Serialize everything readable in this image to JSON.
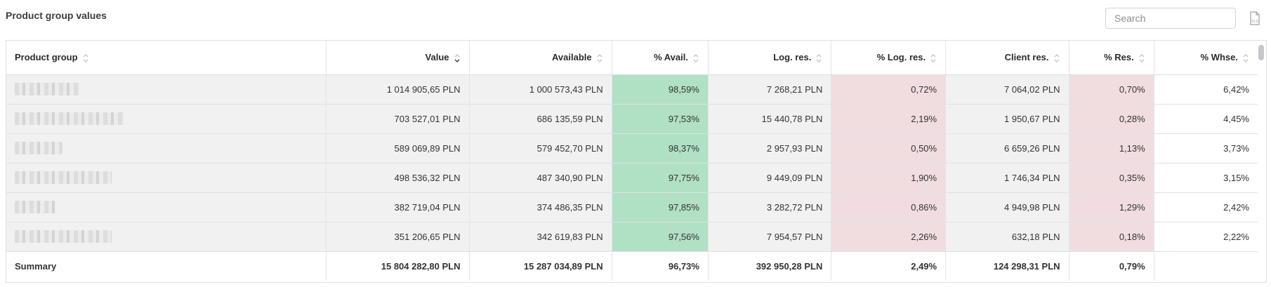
{
  "header": {
    "title": "Product group values"
  },
  "search": {
    "placeholder": "Search",
    "value": ""
  },
  "export": {
    "icon": "xls-file-icon",
    "label": "XLS"
  },
  "table": {
    "columns": [
      {
        "key": "group",
        "label": "Product group",
        "align": "left",
        "sort": "none"
      },
      {
        "key": "value",
        "label": "Value",
        "align": "right",
        "sort": "desc"
      },
      {
        "key": "available",
        "label": "Available",
        "align": "right",
        "sort": "none"
      },
      {
        "key": "pct_avail",
        "label": "% Avail.",
        "align": "right",
        "sort": "none"
      },
      {
        "key": "log_res",
        "label": "Log. res.",
        "align": "right",
        "sort": "none"
      },
      {
        "key": "pct_log_res",
        "label": "% Log. res.",
        "align": "right",
        "sort": "none"
      },
      {
        "key": "client_res",
        "label": "Client res.",
        "align": "right",
        "sort": "none"
      },
      {
        "key": "pct_res",
        "label": "% Res.",
        "align": "right",
        "sort": "none"
      },
      {
        "key": "pct_whse",
        "label": "% Whse.",
        "align": "right",
        "sort": "none"
      }
    ],
    "rows": [
      [
        "",
        "1 014 905,65 PLN",
        "1 000 573,43 PLN",
        "98,59%",
        "7 268,21 PLN",
        "0,72%",
        "7 064,02 PLN",
        "0,70%",
        "6,42%"
      ],
      [
        "",
        "703 527,01 PLN",
        "686 135,59 PLN",
        "97,53%",
        "15 440,78 PLN",
        "2,19%",
        "1 950,67 PLN",
        "0,28%",
        "4,45%"
      ],
      [
        "",
        "589 069,89 PLN",
        "579 452,70 PLN",
        "98,37%",
        "2 957,93 PLN",
        "0,50%",
        "6 659,26 PLN",
        "1,13%",
        "3,73%"
      ],
      [
        "",
        "498 536,32 PLN",
        "487 340,90 PLN",
        "97,75%",
        "9 449,09 PLN",
        "1,90%",
        "1 746,34 PLN",
        "0,35%",
        "3,15%"
      ],
      [
        "",
        "382 719,04 PLN",
        "374 486,35 PLN",
        "97,85%",
        "3 282,72 PLN",
        "0,86%",
        "4 949,98 PLN",
        "1,29%",
        "2,42%"
      ],
      [
        "",
        "351 206,65 PLN",
        "342 619,83 PLN",
        "97,56%",
        "7 954,57 PLN",
        "2,26%",
        "632,18 PLN",
        "0,18%",
        "2,22%"
      ]
    ],
    "summary": [
      "Summary",
      "15 804 282,80 PLN",
      "15 287 034,89 PLN",
      "96,73%",
      "392 950,28 PLN",
      "2,49%",
      "124 298,31 PLN",
      "0,79%",
      ""
    ]
  },
  "colors": {
    "avail_highlight": "#b0e1c4",
    "reservation_highlight": "#f1dde0",
    "row_background": "#f1f1f1"
  }
}
